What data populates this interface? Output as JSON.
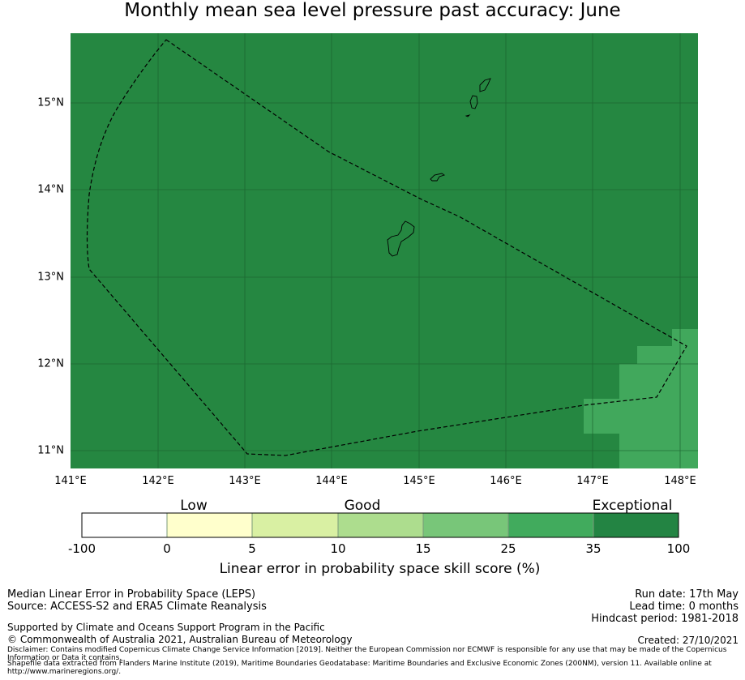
{
  "title": "Monthly mean sea level pressure past accuracy: June",
  "map": {
    "lon_ticks": [
      "141°E",
      "142°E",
      "143°E",
      "144°E",
      "145°E",
      "146°E",
      "147°E",
      "148°E"
    ],
    "lat_ticks": [
      "15°N",
      "14°N",
      "13°N",
      "12°N",
      "11°N"
    ],
    "lon_range": [
      141.0,
      148.2
    ],
    "lat_range": [
      10.8,
      15.8
    ],
    "background_color": "#258741",
    "grid": true,
    "boundary": "dashed",
    "lighter_cells_color": "#41a85c"
  },
  "colorbar": {
    "categories": [
      "Low",
      "Good",
      "Exceptional"
    ],
    "ticks": [
      "-100",
      "0",
      "5",
      "10",
      "15",
      "25",
      "35",
      "100"
    ],
    "colors": [
      "#ffffff",
      "#ffffcc",
      "#d9f0a3",
      "#addd8e",
      "#78c679",
      "#41ab5d",
      "#238443"
    ],
    "title": "Linear error in probability space skill score (%)"
  },
  "footer": {
    "left1": "Median Linear Error in Probability Space (LEPS)",
    "left2": "Source: ACCESS-S2 and ERA5 Climate Reanalysis",
    "left3": "Supported by Climate and Oceans Support Program in the Pacific",
    "left4": "© Commonwealth of Australia 2021, Australian Bureau of Meteorology",
    "disclaimer": "Disclaimer: Contains modified Copernicus Climate Change Service Information [2019]. Neither the European Commission nor ECMWF is responsible for any use that may be made of the Copernicus Information or Data it contains.",
    "shapefile": "Shapefile data extracted from Flanders Marine Institute (2019), Maritime Boundaries Geodatabase: Maritime Boundaries and Exclusive Economic Zones (200NM), version 11. Available online at http://www.marineregions.org/.",
    "run_date": "Run date: 17th May",
    "lead_time": "Lead time: 0 months",
    "hindcast": "Hindcast period: 1981-2018",
    "created": "Created: 27/10/2021"
  }
}
